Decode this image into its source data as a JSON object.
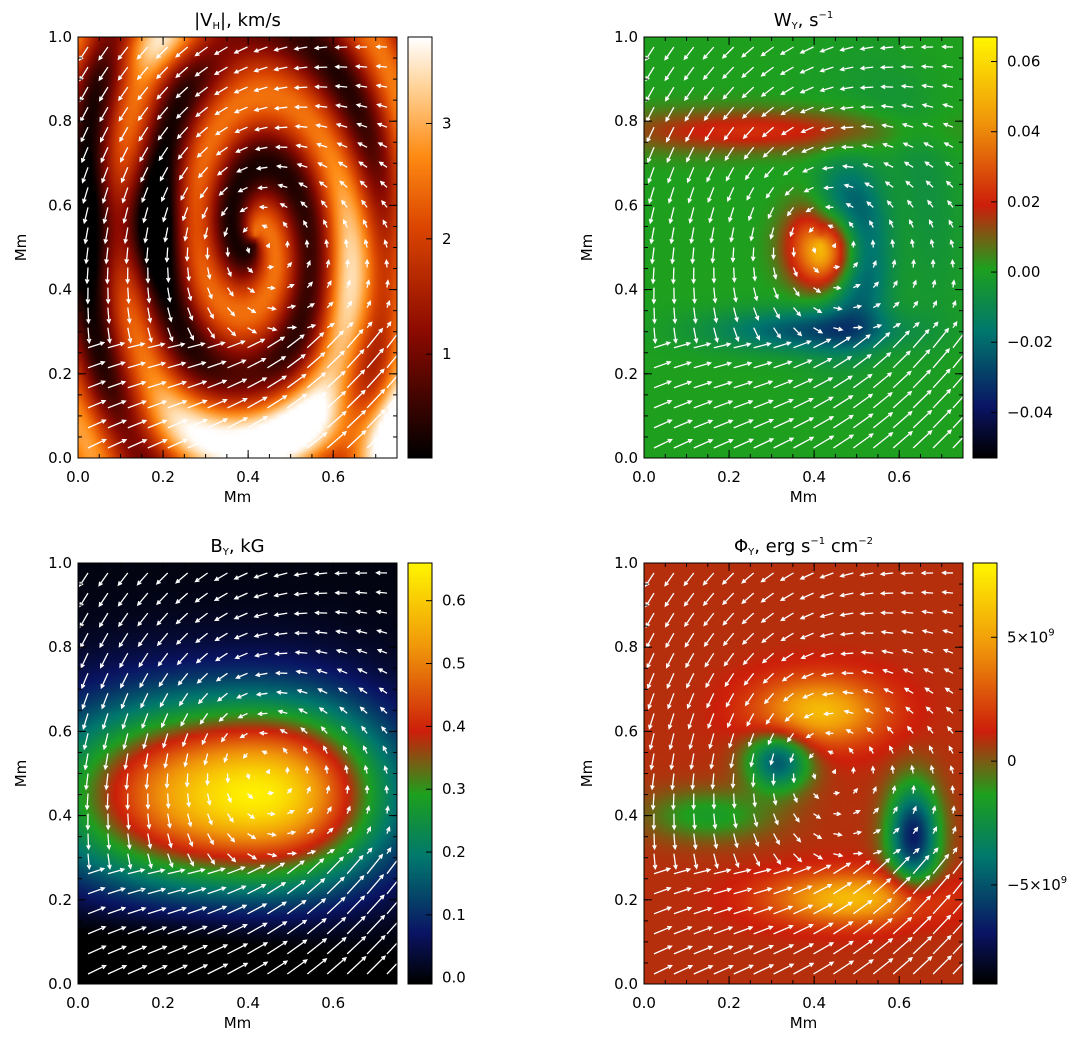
{
  "figure": {
    "panels": [
      {
        "id": "vh",
        "title_main": "|V",
        "title_sub": "H",
        "title_rest": "|, km/s",
        "xlabel": "Mm",
        "ylabel": "Mm",
        "colormap": "hot",
        "colorbar_ticks": [
          "1",
          "2",
          "3"
        ],
        "colorbar_tick_values": [
          1,
          2,
          3
        ],
        "colorbar_range": [
          0.1,
          3.75
        ]
      },
      {
        "id": "wy",
        "title_main": "W",
        "title_sub": "Y",
        "title_rest": ", s",
        "title_sup": "−1",
        "xlabel": "Mm",
        "ylabel": "Mm",
        "colormap": "rainbow-dark",
        "colorbar_ticks": [
          "−0.04",
          "−0.02",
          "0.00",
          "0.02",
          "0.04",
          "0.06"
        ],
        "colorbar_tick_values": [
          -0.04,
          -0.02,
          0.0,
          0.02,
          0.04,
          0.06
        ],
        "colorbar_range": [
          -0.053,
          0.067
        ]
      },
      {
        "id": "by",
        "title_main": "B",
        "title_sub": "Y",
        "title_rest": ", kG",
        "xlabel": "Mm",
        "ylabel": "Mm",
        "colormap": "rainbow-dark",
        "colorbar_ticks": [
          "0.0",
          "0.1",
          "0.2",
          "0.3",
          "0.4",
          "0.5",
          "0.6"
        ],
        "colorbar_tick_values": [
          0.0,
          0.1,
          0.2,
          0.3,
          0.4,
          0.5,
          0.6
        ],
        "colorbar_range": [
          -0.01,
          0.66
        ]
      },
      {
        "id": "phi",
        "title_main": "Φ",
        "title_sub": "Y",
        "title_rest": ", erg s",
        "title_sup": "−1",
        "title_rest2": " cm",
        "title_sup2": "−2",
        "xlabel": "Mm",
        "ylabel": "Mm",
        "colormap": "rainbow-dark",
        "colorbar_ticks": [
          "−5×10",
          "0",
          "5×10"
        ],
        "colorbar_tick_exp": [
          "9",
          "",
          "9"
        ],
        "colorbar_tick_values": [
          -5000000000.0,
          0,
          5000000000.0
        ],
        "colorbar_range": [
          -9000000000.0,
          8000000000.0
        ]
      }
    ],
    "x_ticks": [
      "0.0",
      "0.2",
      "0.4",
      "0.6"
    ],
    "x_tick_values": [
      0.0,
      0.2,
      0.4,
      0.6
    ],
    "y_ticks": [
      "0.0",
      "0.2",
      "0.4",
      "0.6",
      "0.8",
      "1.0"
    ],
    "y_tick_values": [
      0.0,
      0.2,
      0.4,
      0.6,
      0.8,
      1.0
    ],
    "colors": {
      "arrow": "#ffffff",
      "axis": "#000000"
    }
  },
  "chart_data": [
    {
      "type": "heatmap",
      "title": "|VH|, km/s",
      "xlabel": "Mm",
      "ylabel": "Mm",
      "xlim": [
        0.0,
        0.75
      ],
      "ylim": [
        0.0,
        1.0
      ],
      "colorbar_range": [
        0.1,
        3.75
      ],
      "overlay": "velocity vector field (white arrows)"
    },
    {
      "type": "heatmap",
      "title": "WY, s^-1",
      "xlabel": "Mm",
      "ylabel": "Mm",
      "xlim": [
        0.0,
        0.75
      ],
      "ylim": [
        0.0,
        1.0
      ],
      "colorbar_range": [
        -0.053,
        0.067
      ],
      "overlay": "velocity vector field (white arrows)"
    },
    {
      "type": "heatmap",
      "title": "BY, kG",
      "xlabel": "Mm",
      "ylabel": "Mm",
      "xlim": [
        0.0,
        0.75
      ],
      "ylim": [
        0.0,
        1.0
      ],
      "colorbar_range": [
        -0.01,
        0.66
      ],
      "overlay": "velocity vector field (white arrows)"
    },
    {
      "type": "heatmap",
      "title": "ΦY, erg s^-1 cm^-2",
      "xlabel": "Mm",
      "ylabel": "Mm",
      "xlim": [
        0.0,
        0.75
      ],
      "ylim": [
        0.0,
        1.0
      ],
      "colorbar_range": [
        -9000000000.0,
        8000000000.0
      ],
      "overlay": "velocity vector field (white arrows)"
    }
  ]
}
